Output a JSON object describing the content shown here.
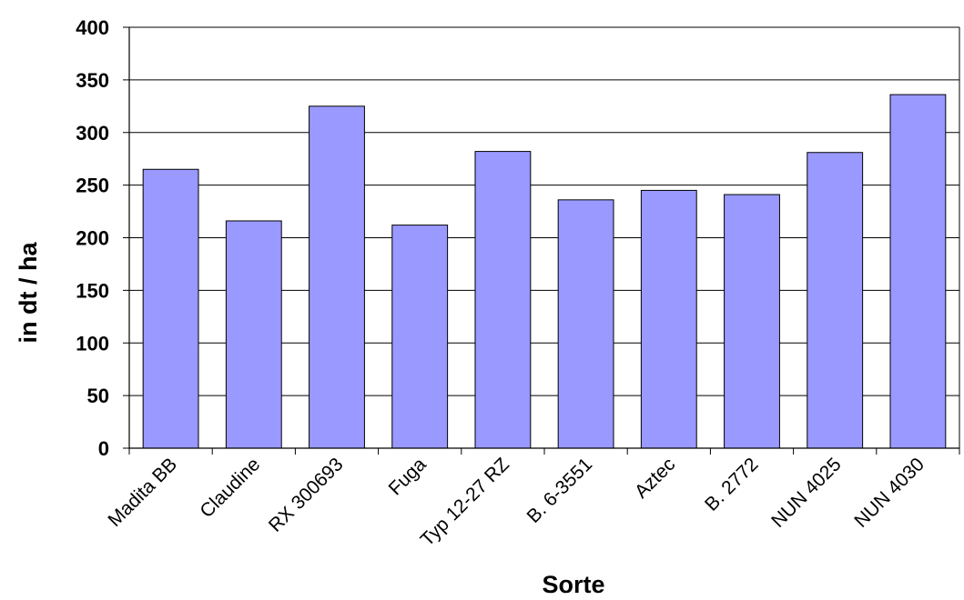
{
  "chart_data": {
    "type": "bar",
    "title": "",
    "xlabel": "Sorte",
    "ylabel": "in dt / ha",
    "ylim": [
      0,
      400
    ],
    "yticks": [
      0,
      50,
      100,
      150,
      200,
      250,
      300,
      350,
      400
    ],
    "grid": true,
    "categories": [
      "Madita  BB",
      "Claudine",
      "RX 300693",
      "Fuga",
      "Typ 12-27 RZ",
      "B. 6-3551",
      "Aztec",
      "B. 2772",
      "NUN 4025",
      "NUN 4030"
    ],
    "values": [
      265,
      216,
      325,
      212,
      282,
      236,
      245,
      241,
      281,
      336
    ],
    "bar_color": "#9999ff"
  }
}
